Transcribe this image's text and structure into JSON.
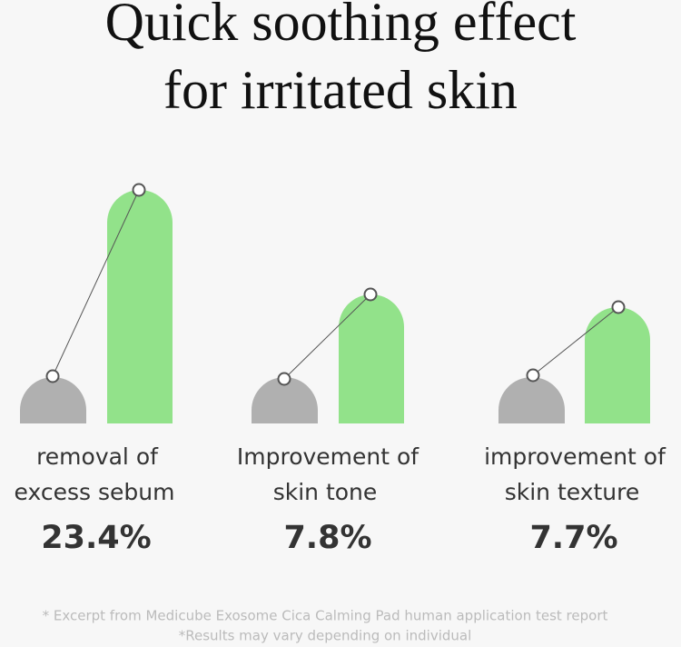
{
  "title": {
    "lines": [
      "Quick soothing effect",
      "for irritated skin"
    ]
  },
  "items": [
    {
      "label": [
        "removal of",
        "excess sebum"
      ],
      "result": "23.4%"
    },
    {
      "label": [
        "Improvement of",
        "skin tone"
      ],
      "result": "7.8%"
    },
    {
      "label": [
        "improvement of",
        "skin texture"
      ],
      "result": "7.7%"
    }
  ],
  "footnotes": [
    "* Excerpt from Medicube Exosome Cica Calming Pad human application test report",
    "*Results may vary depending on individual"
  ]
}
